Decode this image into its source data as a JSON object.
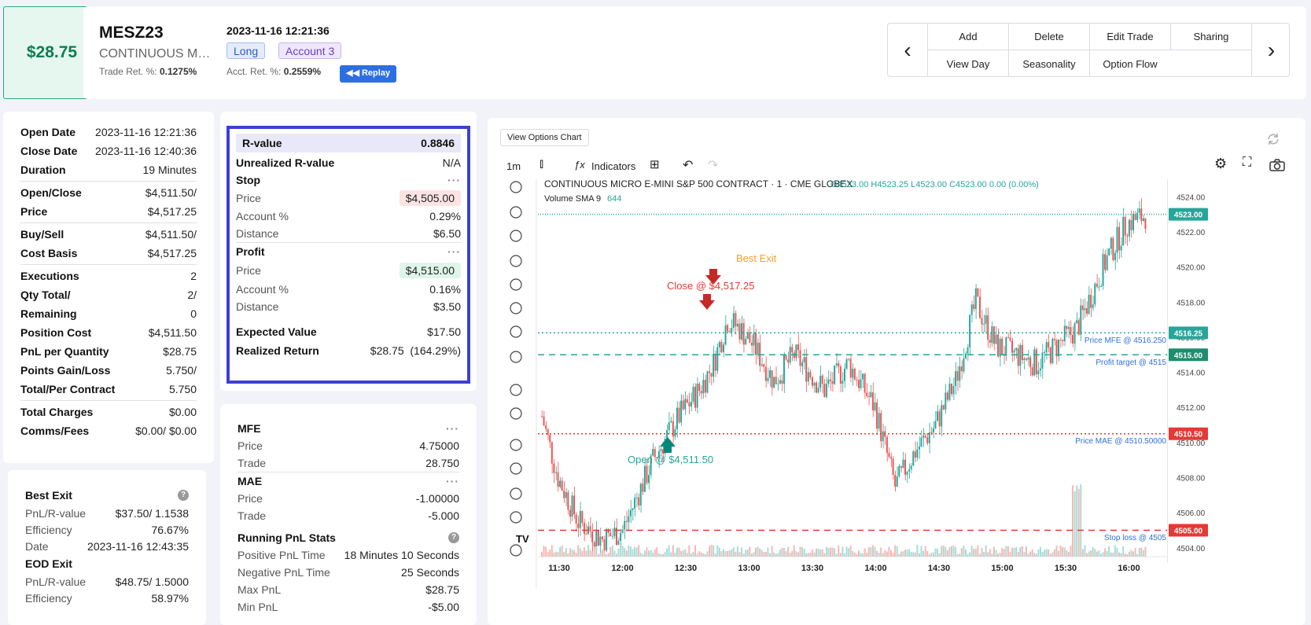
{
  "header": {
    "pnl": "$28.75",
    "symbol": "MESZ23",
    "description": "CONTINUOUS MICRO E-MINI S&P 500 CONTRACT",
    "trade_ret_label": "Trade Ret. %:",
    "trade_ret_value": "0.1275%",
    "datetime": "2023-11-16 12:21:36",
    "side": "Long",
    "account": "Account 3",
    "acct_ret_label": "Acct. Ret. %:",
    "acct_ret_value": "0.2559%",
    "replay_label": "Replay",
    "actions_row1": [
      "Add",
      "Delete",
      "Edit Trade",
      "Sharing"
    ],
    "actions_row2": [
      "View Day",
      "Seasonality",
      "Option Flow"
    ]
  },
  "info": {
    "open_date_label": "Open Date",
    "open_date": "2023-11-16 12:21:36",
    "close_date_label": "Close Date",
    "close_date": "2023-11-16 12:40:36",
    "duration_label": "Duration",
    "duration": "19 Minutes",
    "oc_label1": "Open/Close",
    "oc_val1": "$4,511.50/",
    "oc_label2": "Price",
    "oc_val2": "$4,517.25",
    "bs_label1": "Buy/Sell",
    "bs_val1": "$4,511.50/",
    "bs_label2": "Cost Basis",
    "bs_val2": "$4,517.25",
    "exec_label": "Executions",
    "exec": "2",
    "qty_label1": "Qty Total/",
    "qty_val1": "2/",
    "qty_label2": "Remaining",
    "qty_val2": "0",
    "poscost_label": "Position Cost",
    "poscost": "$4,511.50",
    "pnlq_label": "PnL per Quantity",
    "pnlq": "$28.75",
    "pts_label1": "Points Gain/Loss",
    "pts_val1": "5.750/",
    "pts_label2": "Total/Per Contract",
    "pts_val2": "5.750",
    "charges_label": "Total Charges",
    "charges": "$0.00",
    "comms_label": "Comms/Fees",
    "comms": "$0.00/ $0.00"
  },
  "best": {
    "title": "Best Exit",
    "pnlr_label": "PnL/R-value",
    "pnlr": "$37.50/ 1.1538",
    "eff_label": "Efficiency",
    "eff": "76.67%",
    "date_label": "Date",
    "date": "2023-11-16 12:43:35",
    "eod_title": "EOD Exit",
    "eod_pnlr_label": "PnL/R-value",
    "eod_pnlr": "$48.75/ 1.5000",
    "eod_eff_label": "Efficiency",
    "eod_eff": "58.97%"
  },
  "rvalue": {
    "r_label": "R-value",
    "r": "0.8846",
    "ur_label": "Unrealized R-value",
    "ur": "N/A",
    "stop_label": "Stop",
    "stop_price_label": "Price",
    "stop_price": "$4,505.00",
    "stop_acct_label": "Account %",
    "stop_acct": "0.29%",
    "stop_dist_label": "Distance",
    "stop_dist": "$6.50",
    "profit_label": "Profit",
    "profit_price_label": "Price",
    "profit_price": "$4,515.00",
    "profit_acct_label": "Account %",
    "profit_acct": "0.16%",
    "profit_dist_label": "Distance",
    "profit_dist": "$3.50",
    "ev_label": "Expected Value",
    "ev": "$17.50",
    "rr_label": "Realized Return",
    "rr": "$28.75  (164.29%)"
  },
  "mfe": {
    "mfe_label": "MFE",
    "mfe_price_label": "Price",
    "mfe_price": "4.75000",
    "mfe_trade_label": "Trade",
    "mfe_trade": "28.750",
    "mae_label": "MAE",
    "mae_price_label": "Price",
    "mae_price": "-1.00000",
    "mae_trade_label": "Trade",
    "mae_trade": "-5.000",
    "rps_label": "Running PnL Stats",
    "pos_label": "Positive PnL Time",
    "pos": "18 Minutes 10 Seconds",
    "neg_label": "Negative PnL Time",
    "neg": "25 Seconds",
    "max_label": "Max PnL",
    "max": "$28.75",
    "min_label": "Min PnL",
    "min": "-$5.00"
  },
  "chart": {
    "view_options": "View Options Chart",
    "interval": "1m",
    "indicators": "Indicators",
    "title": "CONTINUOUS MICRO E-MINI S&P 500 CONTRACT · 1 · CME GLOBEX",
    "ohlc": "O4523.00 H4523.25 L4523.00 C4523.00 0.00 (0.00%)",
    "volume_label": "Volume SMA 9",
    "volume_value": "644",
    "best_exit": "Best Exit",
    "close_label": "Close @ $4,517.25",
    "open_label": "Open @ $4,511.50",
    "price_mfe": "Price MFE @ 4516.250",
    "profit_target": "Profit target @ 4515",
    "price_mae": "Price MAE @ 4510.50000",
    "stop_loss": "Stop loss @ 4505",
    "last_price": "4523.00",
    "mfe_tag": "4516.25",
    "pt_tag": "4515.00",
    "mae_tag": "4510.50",
    "sl_tag": "4505.00",
    "colors": {
      "up": "#26a69a",
      "down": "#ef5350"
    }
  },
  "chart_data": {
    "type": "candlestick",
    "x_ticks": [
      "11:30",
      "12:00",
      "12:30",
      "13:00",
      "13:30",
      "14:00",
      "14:30",
      "15:00",
      "15:30",
      "16:00"
    ],
    "y_ticks": [
      "4524.00",
      "4522.00",
      "4520.00",
      "4518.00",
      "4516.00",
      "4514.00",
      "4512.00",
      "4510.00",
      "4508.00",
      "4506.00",
      "4504.00"
    ],
    "ylim": [
      4503.5,
      4525
    ],
    "levels": {
      "mfe": 4516.25,
      "profit_target": 4515,
      "mae": 4510.5,
      "stop_loss": 4505,
      "last": 4523
    },
    "price_path": [
      [
        0,
        4511.5
      ],
      [
        8,
        4508
      ],
      [
        18,
        4505.5
      ],
      [
        30,
        4504.5
      ],
      [
        40,
        4505
      ],
      [
        55,
        4509
      ],
      [
        68,
        4511.5
      ],
      [
        78,
        4513
      ],
      [
        85,
        4514.5
      ],
      [
        92,
        4517
      ],
      [
        98,
        4516.5
      ],
      [
        105,
        4515.5
      ],
      [
        115,
        4513.5
      ],
      [
        125,
        4515
      ],
      [
        140,
        4513
      ],
      [
        152,
        4514.5
      ],
      [
        165,
        4512
      ],
      [
        175,
        4507.5
      ],
      [
        185,
        4509.5
      ],
      [
        195,
        4511
      ],
      [
        205,
        4513.5
      ],
      [
        215,
        4518
      ],
      [
        225,
        4515.5
      ],
      [
        235,
        4515
      ],
      [
        245,
        4514.5
      ],
      [
        255,
        4515.5
      ],
      [
        265,
        4516.5
      ],
      [
        280,
        4520.5
      ],
      [
        290,
        4522.5
      ],
      [
        300,
        4523
      ]
    ]
  }
}
